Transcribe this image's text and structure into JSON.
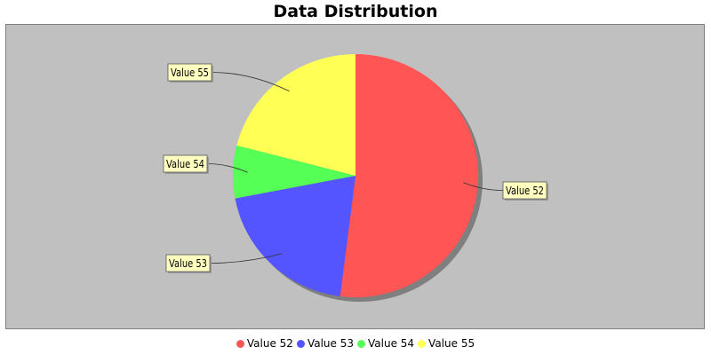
{
  "chart_data": {
    "type": "pie",
    "title": "Data Distribution",
    "legend": "bottom",
    "categories": [
      "Value 52",
      "Value 53",
      "Value 54",
      "Value 55"
    ],
    "values": [
      52,
      20,
      7,
      21
    ],
    "colors": [
      "#ff5555",
      "#5555ff",
      "#55ff55",
      "#ffff55"
    ],
    "background": "#c0c0c0",
    "label_background": "#ffffc0"
  }
}
